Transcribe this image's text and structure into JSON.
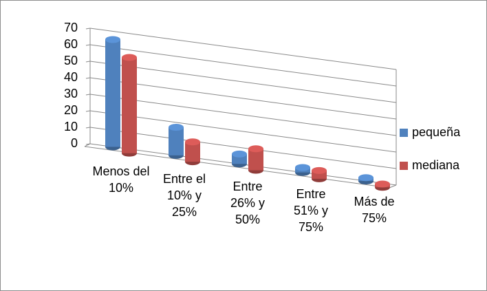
{
  "chart_data": {
    "type": "bar3d",
    "categories": [
      "Menos del 10%",
      "Entre el 10% y 25%",
      "Entre 26% y 50%",
      "Entre 51% y 75%",
      "Más de 75%"
    ],
    "series": [
      {
        "name": "pequeña",
        "color": "#4f81bd",
        "values": [
          65,
          17,
          6,
          3,
          2
        ]
      },
      {
        "name": "mediana",
        "color": "#c0504d",
        "values": [
          58,
          12,
          13,
          5,
          2
        ]
      }
    ],
    "ylim": [
      0,
      70
    ],
    "yticks": [
      0,
      10,
      20,
      30,
      40,
      50,
      60,
      70
    ],
    "grid": true,
    "legend": "right"
  }
}
